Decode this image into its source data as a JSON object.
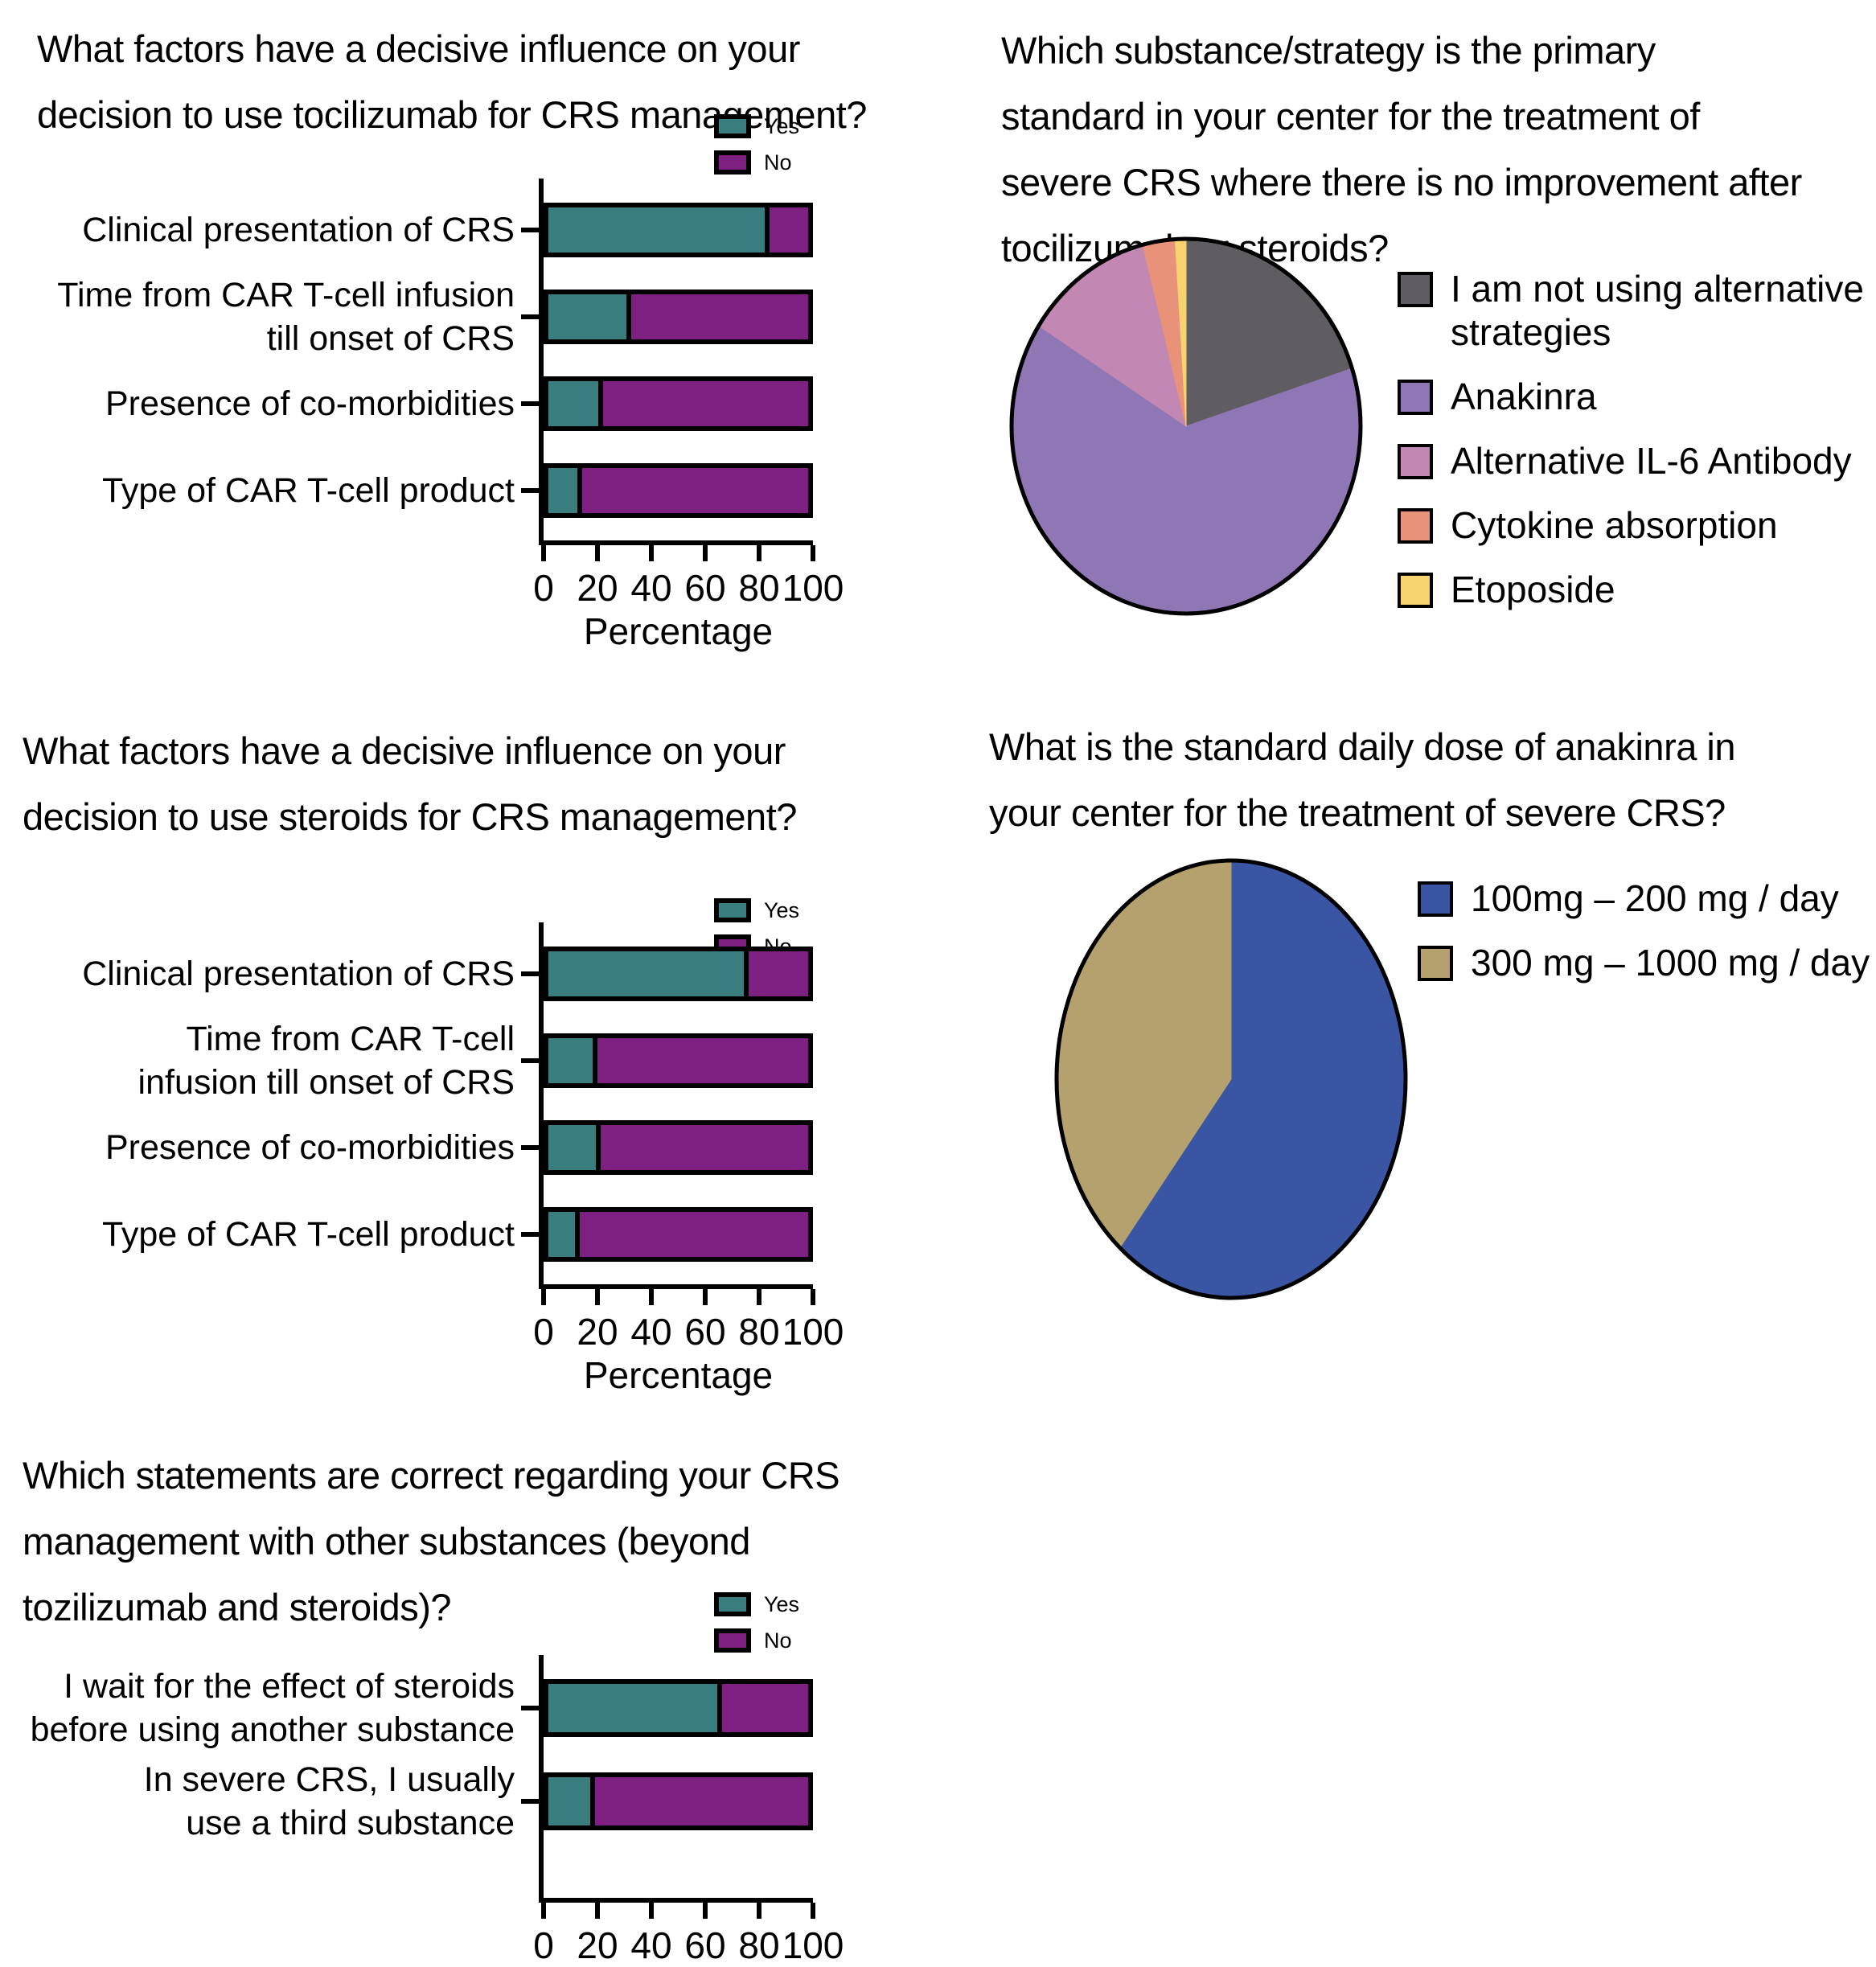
{
  "background": "#FFFFFF",
  "answer_colors": {
    "yes": "#397D7E",
    "no": "#7D2082"
  },
  "chart_data": [
    {
      "id": "bar-tocilizumab",
      "type": "bar",
      "orientation": "horizontal",
      "stacked": true,
      "title": "What factors have a decisive influence on your\ndecision to use tocilizumab for CRS management?",
      "categories": [
        "Clinical presentation of CRS",
        "Time from CAR T-cell infusion\ntill onset of CRS",
        "Presence of co-morbidities",
        "Type of CAR T-cell product"
      ],
      "series": [
        {
          "name": "Yes",
          "color": "#397D7E",
          "values": [
            85,
            32,
            21,
            13
          ]
        },
        {
          "name": "No",
          "color": "#7D2082",
          "values": [
            15,
            68,
            79,
            87
          ]
        }
      ],
      "xlabel": "Percentage",
      "x_ticks": [
        "0",
        "20",
        "40",
        "60",
        "80",
        "100"
      ],
      "xlim": [
        0,
        100
      ],
      "legend_position": "top-right"
    },
    {
      "id": "bar-steroids",
      "type": "bar",
      "orientation": "horizontal",
      "stacked": true,
      "title": "What factors have a decisive influence on your\ndecision to use steroids for CRS management?",
      "categories": [
        "Clinical presentation of CRS",
        "Time from CAR T-cell\ninfusion till onset of CRS",
        "Presence of co-morbidities",
        "Type of CAR T-cell product"
      ],
      "series": [
        {
          "name": "Yes",
          "color": "#397D7E",
          "values": [
            77,
            19,
            20,
            12
          ]
        },
        {
          "name": "No",
          "color": "#7D2082",
          "values": [
            23,
            81,
            80,
            88
          ]
        }
      ],
      "xlabel": "Percentage",
      "x_ticks": [
        "0",
        "20",
        "40",
        "60",
        "80",
        "100"
      ],
      "xlim": [
        0,
        100
      ],
      "legend_position": "top-right"
    },
    {
      "id": "bar-other-substances",
      "type": "bar",
      "orientation": "horizontal",
      "stacked": true,
      "title": "Which statements are correct regarding your CRS\nmanagement with other substances (beyond\ntozilizumab and steroids)?",
      "categories": [
        "I wait for the effect of steroids\nbefore using another substance",
        "In severe CRS, I usually\nuse a third substance"
      ],
      "series": [
        {
          "name": "Yes",
          "color": "#397D7E",
          "values": [
            67,
            18
          ]
        },
        {
          "name": "No",
          "color": "#7D2082",
          "values": [
            33,
            82
          ]
        }
      ],
      "xlabel": "",
      "x_ticks": [
        "0",
        "20",
        "40",
        "60",
        "80",
        "100"
      ],
      "xlim": [
        0,
        100
      ],
      "legend_position": "top-right"
    },
    {
      "id": "pie-alternative-strategies",
      "type": "pie",
      "title": "Which substance/strategy is the primary\nstandard in your center for the treatment of\nsevere CRS where there is no improvement after\ntocilizumab or steroids?",
      "unit": "percent",
      "start_angle": "12-oclock",
      "direction": "clockwise",
      "slices": [
        {
          "label": "I am not using alternative\nstrategies",
          "value": 20,
          "color": "#5F5D62"
        },
        {
          "label": "Anakinra",
          "value": 64,
          "color": "#8F76B4"
        },
        {
          "label": "Alternative IL-6 Antibody",
          "value": 12,
          "color": "#C287B3"
        },
        {
          "label": "Cytokine absorption",
          "value": 3,
          "color": "#E79279"
        },
        {
          "label": "Etoposide",
          "value": 1,
          "color": "#F6D36E"
        }
      ],
      "legend_position": "right"
    },
    {
      "id": "pie-anakinra-dose",
      "type": "pie",
      "title": "What is the standard daily dose of anakinra in\nyour center for the treatment of severe CRS?",
      "unit": "percent",
      "start_angle": "12-oclock",
      "direction": "clockwise",
      "slices": [
        {
          "label": "100mg – 200 mg / day",
          "value": 61,
          "color": "#3A55A4"
        },
        {
          "label": "300 mg – 1000 mg / day",
          "value": 39,
          "color": "#B4A16D"
        }
      ],
      "legend_position": "right"
    }
  ]
}
